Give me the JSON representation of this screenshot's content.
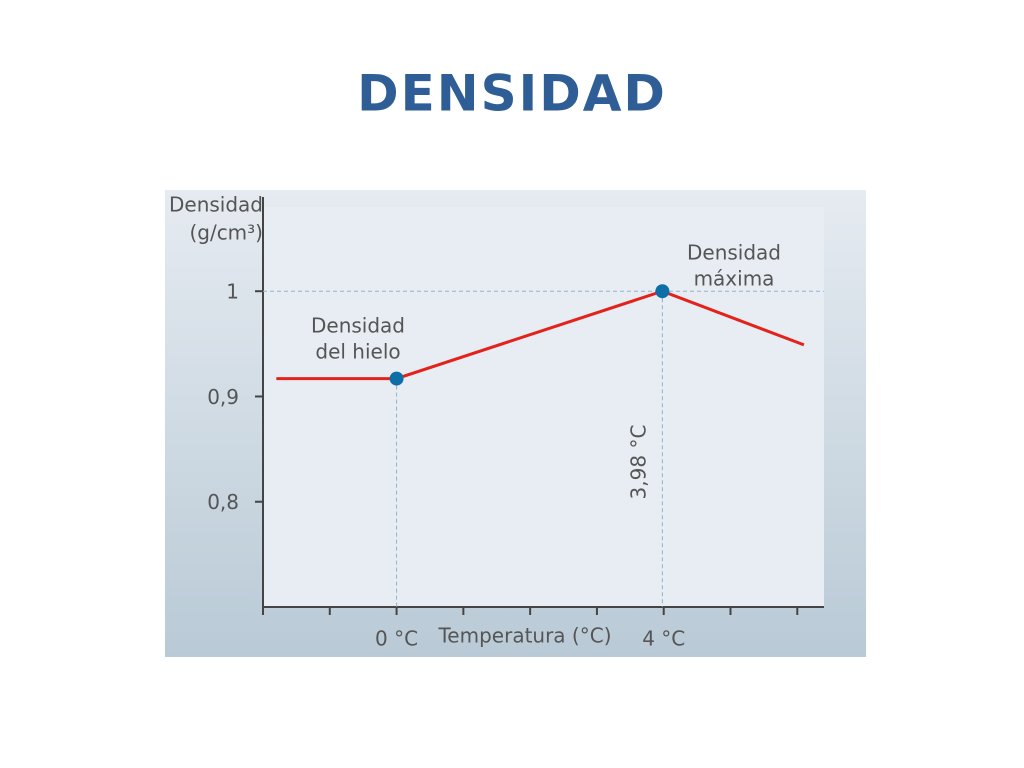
{
  "title": "DENSIDAD",
  "chart_data": {
    "type": "line",
    "y_label": [
      "Densidad",
      "(g/cm³)"
    ],
    "x_label": "Temperatura (°C)",
    "x": [
      -1.8,
      0,
      3.98,
      6.1
    ],
    "series": [
      {
        "color": "#e3231b",
        "values": [
          0.917,
          0.917,
          1.0,
          0.949
        ],
        "marker_indices": [
          1,
          2
        ],
        "marker_color": "#0e6fa8"
      }
    ],
    "xlim": [
      -2,
      6.4
    ],
    "xticks": [
      {
        "value": 0,
        "label": "0 °C"
      },
      {
        "value": 4,
        "label": "4 °C"
      }
    ],
    "xminorticks": [
      -2,
      -1,
      1,
      2,
      3,
      5,
      6
    ],
    "ylim": [
      0.7,
      1.08
    ],
    "yticks": [
      1,
      {
        "value": 0.9,
        "label": "0,9"
      },
      {
        "value": 0.8,
        "label": "0,8"
      }
    ],
    "annotations": [
      {
        "text": [
          "Densidad",
          "del hielo"
        ]
      },
      {
        "text": [
          "Densidad",
          "máxima"
        ]
      },
      {
        "text": [
          "3,98 °C"
        ]
      }
    ]
  }
}
